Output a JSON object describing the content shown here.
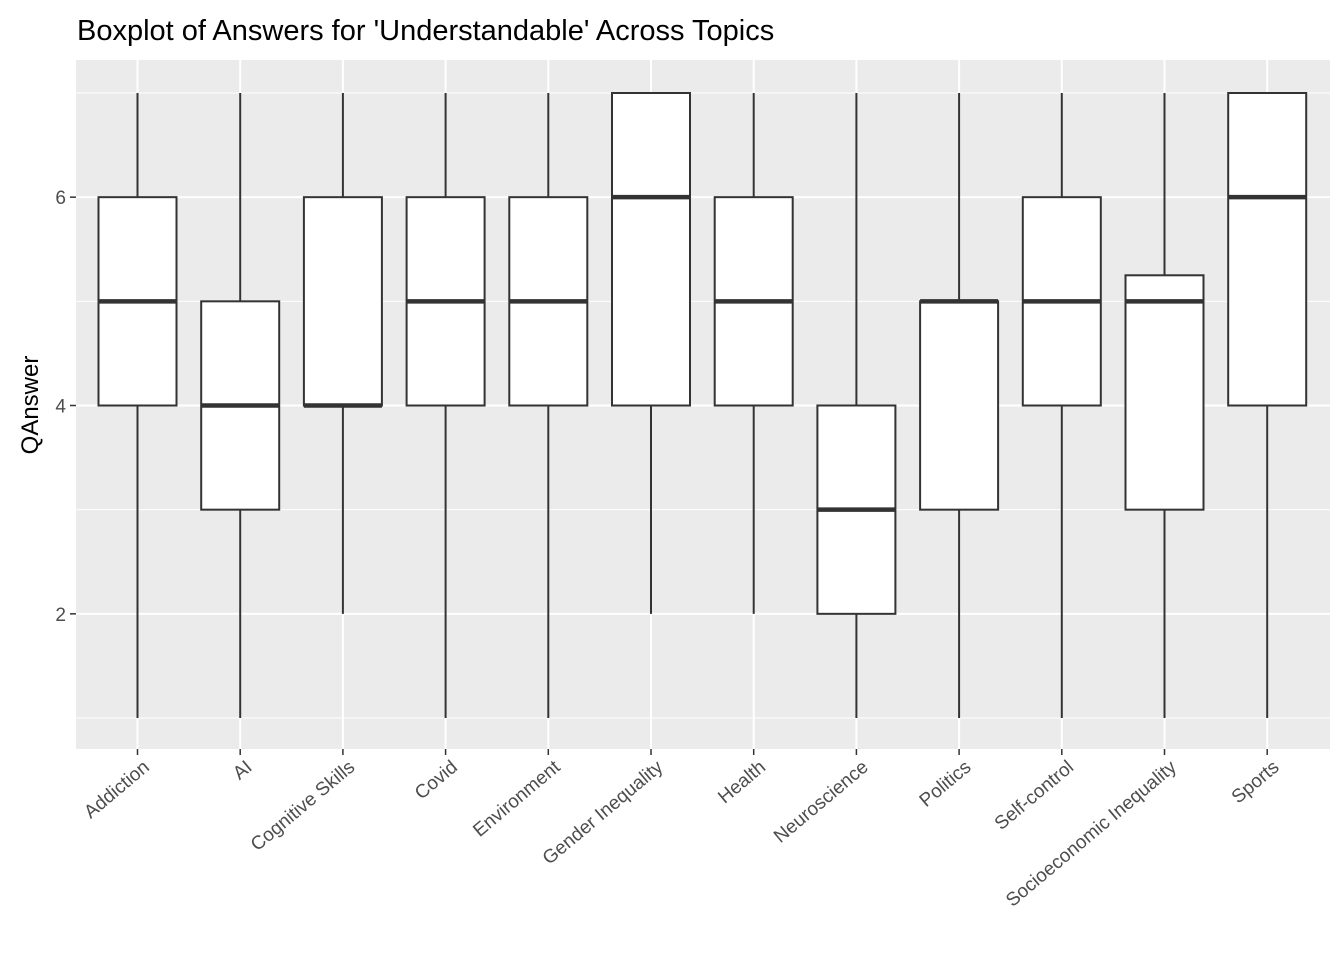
{
  "chart_data": {
    "type": "boxplot",
    "title": "Boxplot of Answers for 'Understandable' Across Topics",
    "xlabel": "",
    "ylabel": "QAnswer",
    "ylim": [
      0.85,
      7.15
    ],
    "yticks": [
      2,
      4,
      6
    ],
    "grid": true,
    "legend": "none",
    "categories": [
      "Addiction",
      "AI",
      "Cognitive Skills",
      "Covid",
      "Environment",
      "Gender Inequality",
      "Health",
      "Neuroscience",
      "Politics",
      "Self-control",
      "Socioeconomic Inequality",
      "Sports"
    ],
    "boxes": [
      {
        "min": 1,
        "q1": 4,
        "median": 5,
        "q3": 6,
        "max": 7
      },
      {
        "min": 1,
        "q1": 3,
        "median": 4,
        "q3": 5,
        "max": 7
      },
      {
        "min": 2,
        "q1": 4,
        "median": 4,
        "q3": 6,
        "max": 7
      },
      {
        "min": 1,
        "q1": 4,
        "median": 5,
        "q3": 6,
        "max": 7
      },
      {
        "min": 1,
        "q1": 4,
        "median": 5,
        "q3": 6,
        "max": 7
      },
      {
        "min": 2,
        "q1": 4,
        "median": 6,
        "q3": 7,
        "max": 7
      },
      {
        "min": 2,
        "q1": 4,
        "median": 5,
        "q3": 6,
        "max": 7
      },
      {
        "min": 1,
        "q1": 2,
        "median": 3,
        "q3": 4,
        "max": 7
      },
      {
        "min": 1,
        "q1": 3,
        "median": 5,
        "q3": 5,
        "max": 7
      },
      {
        "min": 1,
        "q1": 4,
        "median": 5,
        "q3": 6,
        "max": 7
      },
      {
        "min": 1,
        "q1": 3,
        "median": 5,
        "q3": 5.25,
        "max": 7
      },
      {
        "min": 1,
        "q1": 4,
        "median": 6,
        "q3": 7,
        "max": 7
      }
    ],
    "colors": {
      "panel": "#ebebeb",
      "grid": "#ffffff",
      "box_fill": "#ffffff",
      "box_line": "#333333",
      "tick": "#333333",
      "tick_text": "#4d4d4d"
    }
  }
}
